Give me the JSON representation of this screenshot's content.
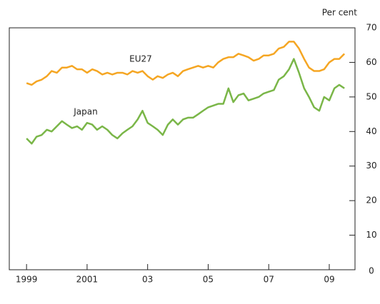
{
  "chart_data": {
    "type": "line",
    "y_axis_label": "Per cent",
    "x": [
      1999,
      1999.17,
      1999.33,
      1999.5,
      1999.67,
      1999.83,
      2000,
      2000.17,
      2000.33,
      2000.5,
      2000.67,
      2000.83,
      2001,
      2001.17,
      2001.33,
      2001.5,
      2001.67,
      2001.83,
      2002,
      2002.17,
      2002.33,
      2002.5,
      2002.67,
      2002.83,
      2003,
      2003.17,
      2003.33,
      2003.5,
      2003.67,
      2003.83,
      2004,
      2004.17,
      2004.33,
      2004.5,
      2004.67,
      2004.83,
      2005,
      2005.17,
      2005.33,
      2005.5,
      2005.67,
      2005.83,
      2006,
      2006.17,
      2006.33,
      2006.5,
      2006.67,
      2006.83,
      2007,
      2007.17,
      2007.33,
      2007.5,
      2007.67,
      2007.83,
      2008,
      2008.17,
      2008.33,
      2008.5,
      2008.67,
      2008.83,
      2009,
      2009.17,
      2009.33,
      2009.5
    ],
    "series": [
      {
        "name": "EU27",
        "color": "#f5a623",
        "values": [
          54,
          53.5,
          54.5,
          55,
          56,
          57.5,
          57,
          58.5,
          58.5,
          59,
          58,
          58,
          57,
          58,
          57.5,
          56.5,
          57,
          56.5,
          57,
          57,
          56.5,
          57.5,
          57,
          57.5,
          56,
          55,
          56,
          55.5,
          56.5,
          57,
          56,
          57.5,
          58,
          58.5,
          59,
          58.5,
          59,
          58.5,
          60,
          61,
          61.5,
          61.5,
          62.5,
          62,
          61.5,
          60.5,
          61,
          62,
          62,
          62.5,
          64,
          64.5,
          66,
          66,
          64,
          61,
          58.5,
          57.5,
          57.5,
          58,
          60,
          61,
          61,
          62.5
        ]
      },
      {
        "name": "Japan",
        "color": "#7ab648",
        "values": [
          38,
          36.5,
          38.5,
          39,
          40.5,
          40,
          41.5,
          43,
          42,
          41,
          41.5,
          40.5,
          42.5,
          42,
          40.5,
          41.5,
          40.5,
          39,
          38,
          39.5,
          40.5,
          41.5,
          43.5,
          46,
          42.5,
          41.5,
          40.5,
          39,
          42,
          43.5,
          42,
          43.5,
          44,
          44,
          45,
          46,
          47,
          47.5,
          48,
          48,
          52.5,
          48.5,
          50.5,
          51,
          49,
          49.5,
          50,
          51,
          51.5,
          52,
          55,
          56,
          58,
          61,
          57,
          52.5,
          50,
          47,
          46,
          50,
          49,
          52.5,
          53.5,
          52.5
        ]
      }
    ],
    "xlim": [
      1998.43,
      2009.85
    ],
    "xticks": [
      1999,
      2001,
      {
        "value": 2003,
        "label": "03"
      },
      {
        "value": 2005,
        "label": "05"
      },
      {
        "value": 2007,
        "label": "07"
      },
      {
        "value": 2009,
        "label": "09"
      }
    ],
    "ylim": [
      0,
      70
    ],
    "yticks": [
      0,
      10,
      20,
      30,
      40,
      50,
      60,
      70
    ]
  }
}
